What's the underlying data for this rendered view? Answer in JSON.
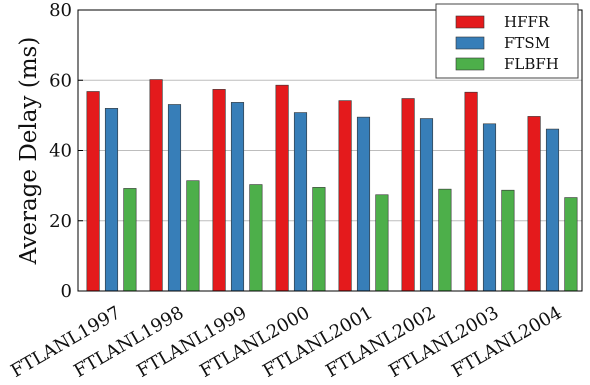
{
  "chart_data": {
    "type": "bar",
    "categories": [
      "FTLANL1997",
      "FTLANL1998",
      "FTLANL1999",
      "FTLANL2000",
      "FTLANL2001",
      "FTLANL2002",
      "FTLANL2003",
      "FTLANL2004"
    ],
    "series": [
      {
        "name": "HFFR",
        "color": "#e41a1c",
        "values": [
          56.8,
          60.2,
          57.4,
          58.6,
          54.2,
          54.8,
          56.6,
          49.7
        ]
      },
      {
        "name": "FTSM",
        "color": "#377eb8",
        "values": [
          52.0,
          53.1,
          53.7,
          50.8,
          49.5,
          49.1,
          47.6,
          46.1
        ]
      },
      {
        "name": "FLBFH",
        "color": "#4daf4a",
        "values": [
          29.2,
          31.4,
          30.3,
          29.5,
          27.4,
          29.0,
          28.7,
          26.6
        ]
      }
    ],
    "title": "",
    "xlabel": "",
    "ylabel": "Average Delay (ms)",
    "ylim": [
      0,
      80
    ],
    "yticks": [
      0,
      20,
      40,
      60,
      80
    ],
    "grid": "horizontal",
    "legend_position": "top-right"
  }
}
